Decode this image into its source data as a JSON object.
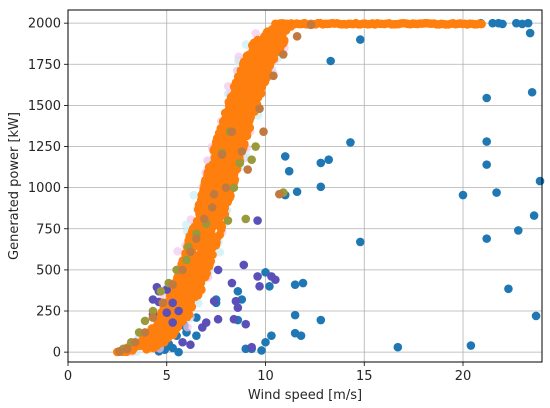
{
  "chart_data": {
    "type": "scatter",
    "xlabel": "Wind speed [m/s]",
    "ylabel": "Generated power [kW]",
    "xlim": [
      0,
      24
    ],
    "ylim": [
      -60,
      2080
    ],
    "xticks": [
      0,
      5,
      10,
      15,
      20
    ],
    "yticks": [
      0,
      250,
      500,
      750,
      1000,
      1250,
      1500,
      1750,
      2000
    ],
    "grid": true,
    "colors": {
      "blue": "#1f77b4",
      "orange": "#ff7f0e",
      "purple": "#5b50b8",
      "olive": "#9a9a3a",
      "brown": "#c07a40"
    },
    "series": [
      {
        "color": "#1f77b4",
        "points": [
          [
            13.3,
            1770
          ],
          [
            14.3,
            1275
          ],
          [
            14.8,
            1900
          ],
          [
            11.0,
            1190
          ],
          [
            11.2,
            1100
          ],
          [
            11.6,
            975
          ],
          [
            12.8,
            1150
          ],
          [
            13.2,
            1170
          ],
          [
            12.8,
            1005
          ],
          [
            11.0,
            955
          ],
          [
            14.8,
            670
          ],
          [
            11.9,
            420
          ],
          [
            11.5,
            410
          ],
          [
            11.5,
            225
          ],
          [
            11.5,
            115
          ],
          [
            11.8,
            100
          ],
          [
            10.3,
            100
          ],
          [
            10.0,
            60
          ],
          [
            9.0,
            20
          ],
          [
            9.3,
            20
          ],
          [
            9.8,
            10
          ],
          [
            12.8,
            195
          ],
          [
            10.0,
            485
          ],
          [
            10.2,
            400
          ],
          [
            8.6,
            370
          ],
          [
            8.8,
            320
          ],
          [
            8.6,
            195
          ],
          [
            7.5,
            320
          ],
          [
            7.5,
            300
          ],
          [
            6.5,
            210
          ],
          [
            6.0,
            120
          ],
          [
            6.5,
            100
          ],
          [
            5.9,
            160
          ],
          [
            5.5,
            100
          ],
          [
            5.0,
            35
          ],
          [
            5.3,
            25
          ],
          [
            4.9,
            15
          ],
          [
            4.6,
            5
          ],
          [
            5.6,
            0
          ],
          [
            5.1,
            50
          ],
          [
            16.7,
            30
          ],
          [
            20.4,
            40
          ],
          [
            20.0,
            955
          ],
          [
            21.2,
            1545
          ],
          [
            21.2,
            1280
          ],
          [
            21.2,
            1140
          ],
          [
            21.2,
            690
          ],
          [
            21.7,
            970
          ],
          [
            22.3,
            385
          ],
          [
            22.8,
            740
          ],
          [
            23.4,
            1940
          ],
          [
            23.5,
            1580
          ],
          [
            23.6,
            830
          ],
          [
            23.9,
            1040
          ],
          [
            23.7,
            220
          ],
          [
            22.7,
            2000
          ],
          [
            21.5,
            2000
          ],
          [
            22.0,
            1995
          ],
          [
            23.0,
            1995
          ],
          [
            23.3,
            2000
          ],
          [
            20.9,
            2000
          ],
          [
            21.8,
            2000
          ]
        ]
      },
      {
        "color": "#5b50b8",
        "points": [
          [
            4.3,
            320
          ],
          [
            4.6,
            370
          ],
          [
            4.5,
            395
          ],
          [
            4.6,
            305
          ],
          [
            5.0,
            380
          ],
          [
            5.3,
            300
          ],
          [
            5.6,
            250
          ],
          [
            5.0,
            240
          ],
          [
            7.4,
            310
          ],
          [
            7.6,
            200
          ],
          [
            8.9,
            530
          ],
          [
            8.4,
            200
          ],
          [
            9.0,
            170
          ],
          [
            8.6,
            270
          ],
          [
            7.6,
            500
          ],
          [
            8.5,
            310
          ],
          [
            8.3,
            420
          ],
          [
            4.3,
            230
          ],
          [
            5.3,
            180
          ],
          [
            5.8,
            60
          ],
          [
            6.2,
            45
          ],
          [
            6.8,
            150
          ],
          [
            7.0,
            180
          ],
          [
            9.3,
            30
          ],
          [
            9.6,
            800
          ],
          [
            10.3,
            460
          ],
          [
            10.5,
            440
          ],
          [
            9.7,
            400
          ],
          [
            9.6,
            460
          ]
        ]
      },
      {
        "color": "#9a9a3a",
        "points": [
          [
            9.0,
            810
          ],
          [
            8.1,
            800
          ],
          [
            7.0,
            780
          ],
          [
            6.5,
            720
          ],
          [
            6.1,
            640
          ],
          [
            6.0,
            560
          ],
          [
            5.5,
            500
          ],
          [
            5.1,
            420
          ],
          [
            4.7,
            370
          ],
          [
            4.3,
            250
          ],
          [
            3.9,
            190
          ],
          [
            3.6,
            120
          ],
          [
            3.2,
            60
          ],
          [
            2.8,
            20
          ],
          [
            10.9,
            970
          ],
          [
            9.5,
            1250
          ],
          [
            8.7,
            1150
          ],
          [
            8.4,
            1000
          ],
          [
            9.3,
            1170
          ],
          [
            8.2,
            1340
          ],
          [
            7.8,
            1210
          ]
        ]
      },
      {
        "color": "#c07a40",
        "points": [
          [
            7.8,
            1200
          ],
          [
            8.3,
            1340
          ],
          [
            9.7,
            1480
          ],
          [
            10.4,
            1680
          ],
          [
            9.9,
            1340
          ],
          [
            8.8,
            1220
          ],
          [
            7.3,
            880
          ],
          [
            6.9,
            810
          ],
          [
            6.5,
            690
          ],
          [
            6.2,
            610
          ],
          [
            5.8,
            500
          ],
          [
            5.3,
            410
          ],
          [
            4.8,
            300
          ],
          [
            4.3,
            210
          ],
          [
            3.9,
            120
          ],
          [
            3.4,
            60
          ],
          [
            3.0,
            20
          ],
          [
            2.6,
            5
          ],
          [
            10.9,
            1810
          ],
          [
            11.6,
            1920
          ],
          [
            12.3,
            1990
          ],
          [
            10.7,
            960
          ],
          [
            9.1,
            1110
          ],
          [
            8.0,
            1000
          ],
          [
            7.4,
            960
          ]
        ]
      },
      {
        "color": "#ff7f0e",
        "band": {
          "curve": [
            [
              2.3,
              0
            ],
            [
              3.0,
              5
            ],
            [
              3.5,
              20
            ],
            [
              4.0,
              45
            ],
            [
              4.5,
              90
            ],
            [
              5.0,
              160
            ],
            [
              5.5,
              260
            ],
            [
              6.0,
              390
            ],
            [
              6.5,
              560
            ],
            [
              7.0,
              760
            ],
            [
              7.5,
              980
            ],
            [
              8.0,
              1200
            ],
            [
              8.5,
              1400
            ],
            [
              9.0,
              1580
            ],
            [
              9.5,
              1740
            ],
            [
              10.0,
              1860
            ],
            [
              10.5,
              1950
            ],
            [
              11.0,
              1990
            ],
            [
              11.5,
              2000
            ],
            [
              12.0,
              2000
            ]
          ],
          "x_shift_left": 0.7,
          "x_shift_right": 0.8,
          "plateau": [
            [
              10.5,
              2000
            ],
            [
              21.0,
              2000
            ]
          ]
        }
      }
    ]
  }
}
